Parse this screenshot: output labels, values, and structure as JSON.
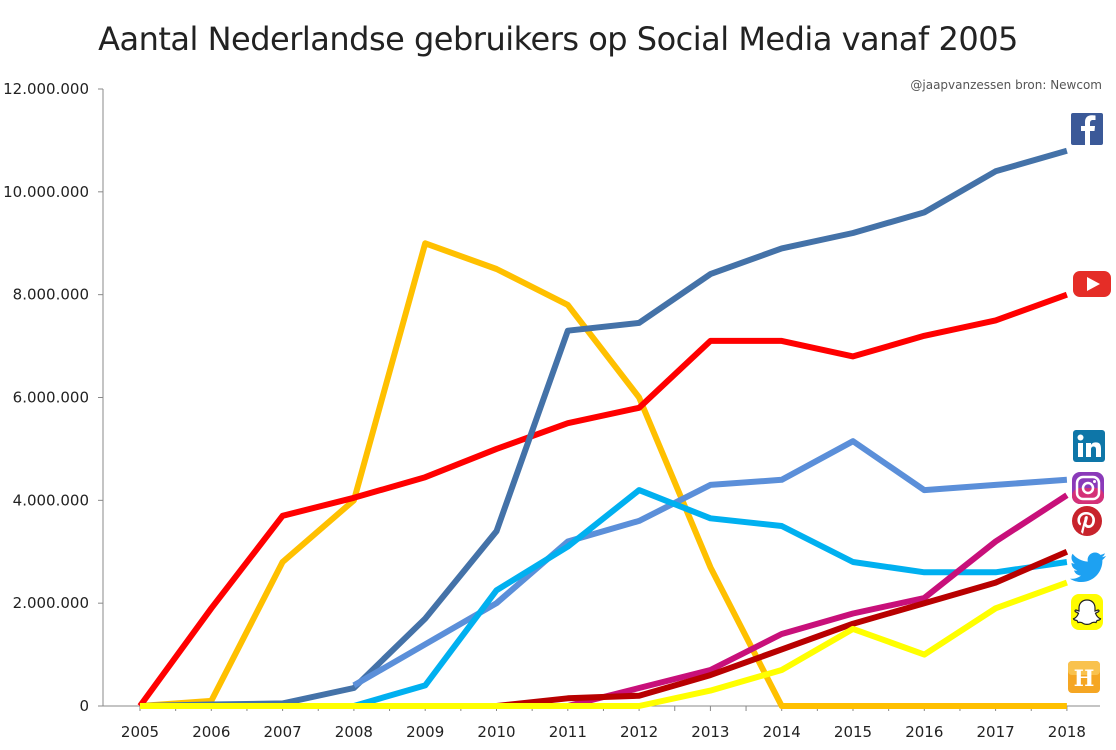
{
  "chart_data": {
    "type": "line",
    "title": "Aantal Nederlandse gebruikers op Social Media vanaf 2005",
    "credit": "@jaapvanzessen  bron: Newcom",
    "xlabel": "",
    "ylabel": "",
    "ylim": [
      0,
      12000000
    ],
    "y_ticks": [
      0,
      2000000,
      4000000,
      6000000,
      8000000,
      10000000,
      12000000
    ],
    "y_tick_labels": [
      "0",
      "2.000.000",
      "4.000.000",
      "6.000.000",
      "8.000.000",
      "10.000.000",
      "12.000.000"
    ],
    "categories": [
      "2005",
      "2006",
      "2007",
      "2008",
      "2009",
      "2010",
      "2011",
      "2012",
      "2013",
      "2014",
      "2015",
      "2016",
      "2017",
      "2018"
    ],
    "grid": false,
    "legend": "icons at right end of each line",
    "series": [
      {
        "key": "hyves",
        "color": "#FFC000",
        "icon": "hyves-icon",
        "values": [
          0,
          100000,
          2800000,
          4000000,
          9000000,
          8500000,
          7800000,
          6000000,
          2700000,
          0,
          0,
          0,
          0,
          0
        ]
      },
      {
        "key": "youtube",
        "color": "#FF0000",
        "icon": "youtube-icon",
        "values": [
          0,
          1900000,
          3700000,
          4050000,
          4450000,
          5000000,
          5500000,
          5800000,
          7100000,
          7100000,
          6800000,
          7200000,
          7500000,
          8000000
        ]
      },
      {
        "key": "facebook",
        "color": "#4472A8",
        "icon": "facebook-icon",
        "values": [
          0,
          30000,
          50000,
          350000,
          1700000,
          3400000,
          7300000,
          7450000,
          8400000,
          8900000,
          9200000,
          9600000,
          10400000,
          10800000
        ]
      },
      {
        "key": "linkedin",
        "color": "#5B8FD9",
        "icon": "linkedin-icon",
        "values": [
          null,
          null,
          null,
          400000,
          1200000,
          2000000,
          3200000,
          3600000,
          4300000,
          4400000,
          5150000,
          4200000,
          4300000,
          4400000
        ]
      },
      {
        "key": "twitter",
        "color": "#00B0F0",
        "icon": "twitter-icon",
        "values": [
          null,
          null,
          null,
          0,
          400000,
          2250000,
          3100000,
          4200000,
          3650000,
          3500000,
          2800000,
          2600000,
          2600000,
          2800000
        ]
      },
      {
        "key": "instagram",
        "color": "#C8107A",
        "icon": "instagram-icon",
        "values": [
          null,
          null,
          null,
          null,
          null,
          null,
          0,
          350000,
          700000,
          1400000,
          1800000,
          2100000,
          3200000,
          4100000
        ]
      },
      {
        "key": "pinterest",
        "color": "#B80000",
        "icon": "pinterest-icon",
        "values": [
          null,
          null,
          null,
          null,
          null,
          0,
          150000,
          200000,
          600000,
          1100000,
          1600000,
          2000000,
          2400000,
          3000000
        ]
      },
      {
        "key": "snapchat",
        "color": "#FFFF00",
        "icon": "snapchat-icon",
        "values": [
          0,
          0,
          0,
          0,
          0,
          0,
          0,
          0,
          300000,
          700000,
          1500000,
          1000000,
          1900000,
          2400000
        ]
      }
    ]
  }
}
